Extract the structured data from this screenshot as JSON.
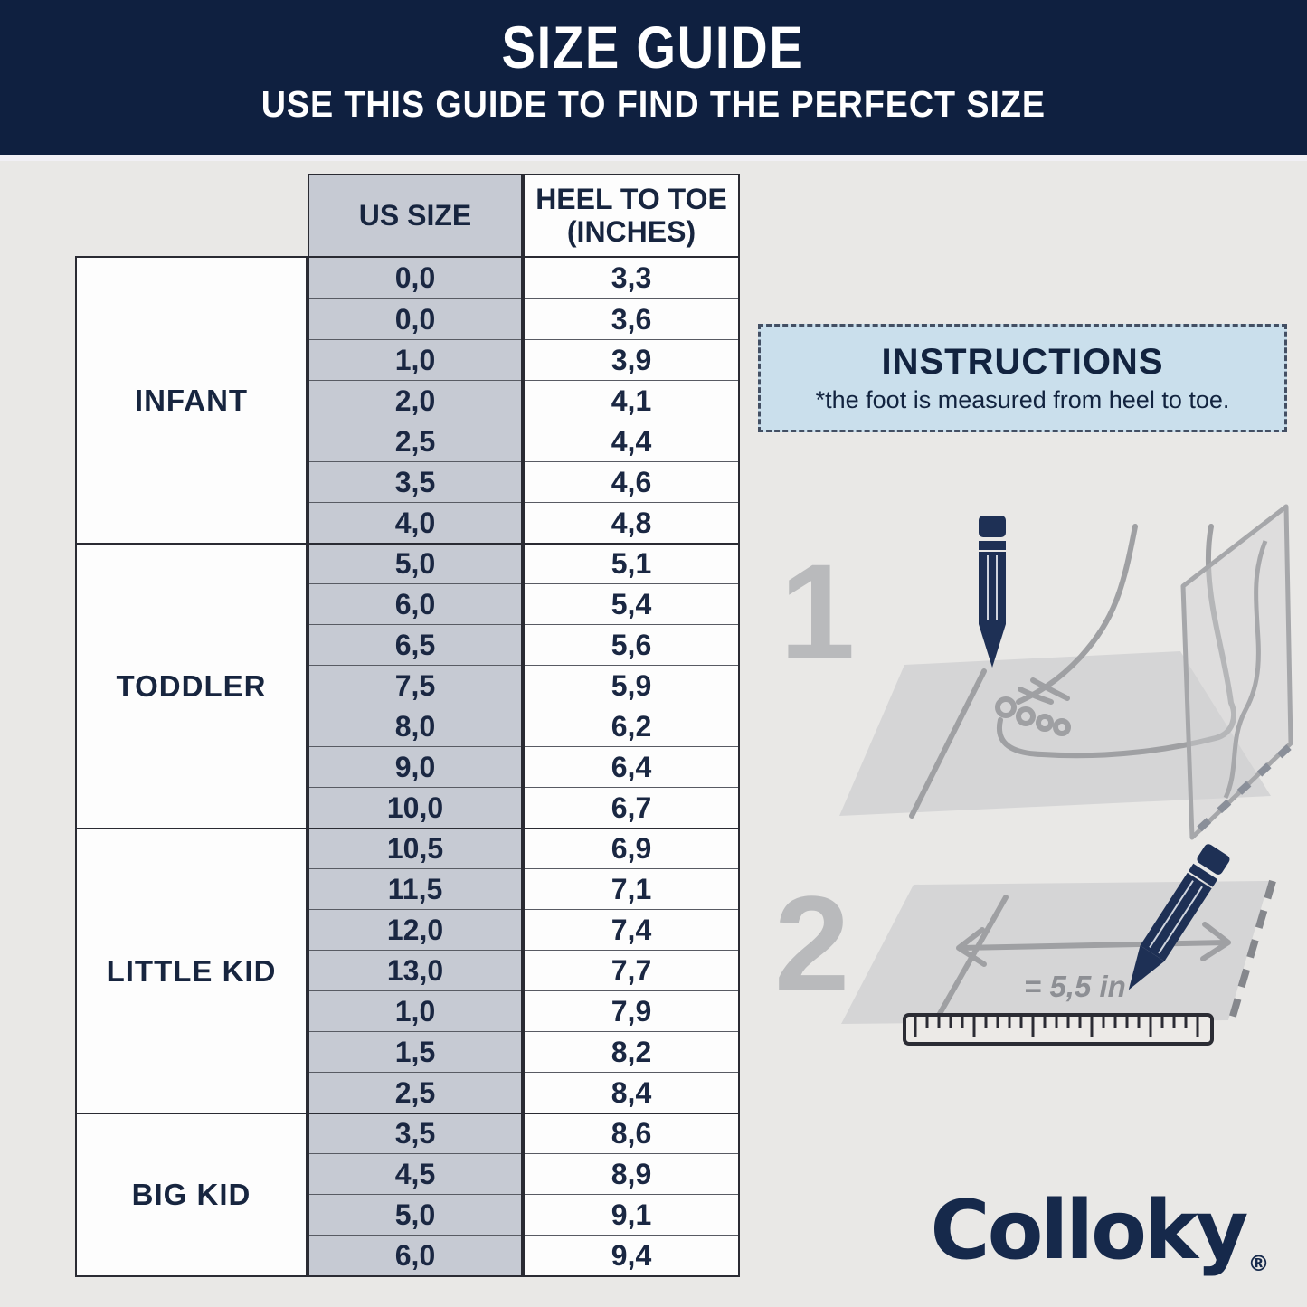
{
  "banner": {
    "title": "SIZE GUIDE",
    "subtitle": "USE THIS GUIDE TO FIND THE PERFECT SIZE"
  },
  "table": {
    "columns": [
      "US SIZE",
      "HEEL TO TOE (INCHES)"
    ],
    "groups": [
      {
        "label": "INFANT",
        "rows": [
          [
            "0,0",
            "3,3"
          ],
          [
            "0,0",
            "3,6"
          ],
          [
            "1,0",
            "3,9"
          ],
          [
            "2,0",
            "4,1"
          ],
          [
            "2,5",
            "4,4"
          ],
          [
            "3,5",
            "4,6"
          ],
          [
            "4,0",
            "4,8"
          ]
        ]
      },
      {
        "label": "TODDLER",
        "rows": [
          [
            "5,0",
            "5,1"
          ],
          [
            "6,0",
            "5,4"
          ],
          [
            "6,5",
            "5,6"
          ],
          [
            "7,5",
            "5,9"
          ],
          [
            "8,0",
            "6,2"
          ],
          [
            "9,0",
            "6,4"
          ],
          [
            "10,0",
            "6,7"
          ]
        ]
      },
      {
        "label": "LITTLE KID",
        "rows": [
          [
            "10,5",
            "6,9"
          ],
          [
            "11,5",
            "7,1"
          ],
          [
            "12,0",
            "7,4"
          ],
          [
            "13,0",
            "7,7"
          ],
          [
            "1,0",
            "7,9"
          ],
          [
            "1,5",
            "8,2"
          ],
          [
            "2,5",
            "8,4"
          ]
        ]
      },
      {
        "label": "BIG KID",
        "rows": [
          [
            "3,5",
            "8,6"
          ],
          [
            "4,5",
            "8,9"
          ],
          [
            "5,0",
            "9,1"
          ],
          [
            "6,0",
            "9,4"
          ]
        ]
      }
    ]
  },
  "instructions": {
    "title": "INSTRUCTIONS",
    "note": "*the foot is measured from heel to toe."
  },
  "steps": [
    {
      "number": "1"
    },
    {
      "number": "2",
      "measurement": "= 5,5 in"
    }
  ],
  "brand": {
    "name": "Colloky",
    "registered": "®"
  },
  "colors": {
    "banner_bg": "#0f2040",
    "navy_text": "#17253f",
    "us_column_bg": "#c6cad3",
    "page_bg": "#e9e8e6",
    "instructions_bg": "#cadfec",
    "pencil_navy": "#1e3055",
    "logo_navy": "#16294b",
    "illustration_gray": "#b9babc"
  }
}
